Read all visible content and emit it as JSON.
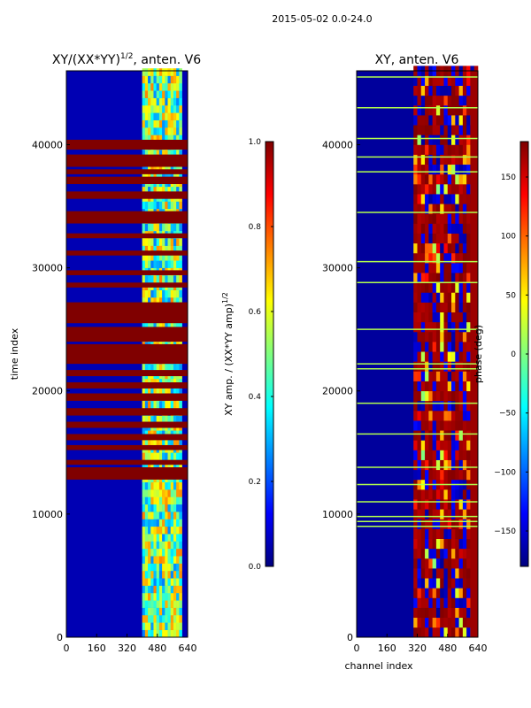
{
  "figure": {
    "suptitle": "2015-05-02 0.0-24.0"
  },
  "chart_data": [
    {
      "type": "heatmap",
      "title": "XY/(XX*YY)^1/2, anten. V6",
      "title_main": "XY/(XX*YY)",
      "title_sup": "1/2",
      "title_rest": ", anten. V6",
      "xlabel": "",
      "ylabel": "time index",
      "xlim": [
        0,
        640
      ],
      "ylim": [
        0,
        46000
      ],
      "xticks": [
        0,
        160,
        320,
        480,
        640
      ],
      "yticks": [
        0,
        10000,
        20000,
        30000,
        40000
      ],
      "colormap": "jet",
      "colorbar": {
        "label_main": "XY amp. / (XX*YY amp)",
        "label_sup": "1/2",
        "range": [
          0.0,
          1.0
        ],
        "ticks": [
          "0.0",
          "0.2",
          "0.4",
          "0.6",
          "0.8",
          "1.0"
        ],
        "tick_values": [
          0.0,
          0.2,
          0.4,
          0.6,
          0.8,
          1.0
        ]
      },
      "features": {
        "background_value": 0.05,
        "bright_channel_range": [
          400,
          610
        ],
        "saturated_time_bands": [
          [
            12800,
            13800
          ],
          [
            14000,
            14400
          ],
          [
            15200,
            15600
          ],
          [
            16000,
            16500
          ],
          [
            17000,
            17500
          ],
          [
            18000,
            18600
          ],
          [
            19200,
            19800
          ],
          [
            20200,
            20700
          ],
          [
            21200,
            21700
          ],
          [
            22200,
            23800
          ],
          [
            24000,
            25200
          ],
          [
            25500,
            27200
          ],
          [
            28400,
            28800
          ],
          [
            29400,
            29800
          ],
          [
            31000,
            31400
          ],
          [
            32400,
            32800
          ],
          [
            33600,
            34600
          ],
          [
            35600,
            36200
          ],
          [
            36800,
            37400
          ],
          [
            37600,
            38000
          ],
          [
            38200,
            39200
          ],
          [
            39600,
            40400
          ]
        ]
      }
    },
    {
      "type": "heatmap",
      "title": "XY, anten. V6",
      "xlabel": "channel index",
      "ylabel": "",
      "xlim": [
        0,
        640
      ],
      "ylim": [
        0,
        46000
      ],
      "xticks": [
        0,
        160,
        320,
        480,
        640
      ],
      "yticks": [
        0,
        10000,
        20000,
        30000,
        40000
      ],
      "colormap": "jet",
      "colorbar": {
        "label_main": "phase (deg)",
        "range": [
          -180,
          180
        ],
        "ticks": [
          "−150",
          "−100",
          "−50",
          "0",
          "50",
          "100",
          "150"
        ],
        "tick_values": [
          -150,
          -100,
          -50,
          0,
          50,
          100,
          150
        ]
      },
      "features": {
        "background_value": -170,
        "red_channel_range": [
          300,
          640
        ],
        "edge_channel_range": [
          600,
          640
        ],
        "horizontal_lines": [
          9000,
          9400,
          9800,
          11000,
          12400,
          13800,
          16500,
          19000,
          21800,
          22200,
          25000,
          28800,
          30500,
          34500,
          37800,
          39000,
          40500,
          43000,
          45500
        ]
      }
    }
  ]
}
